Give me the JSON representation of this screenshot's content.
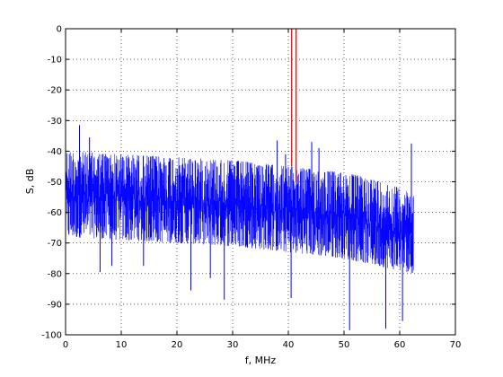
{
  "chart_data": {
    "type": "line",
    "title": "",
    "xlabel": "f, MHz",
    "ylabel": "S, dB",
    "xlim": [
      0,
      70
    ],
    "ylim": [
      -100,
      0
    ],
    "xticks": [
      0,
      10,
      20,
      30,
      40,
      50,
      60,
      70
    ],
    "yticks": [
      0,
      -10,
      -20,
      -30,
      -40,
      -50,
      -60,
      -70,
      -80,
      -90,
      -100
    ],
    "grid": true,
    "legend": "none",
    "series": [
      {
        "color": "#0000ff",
        "f_range": [
          0,
          62.5
        ],
        "envelope_top": [
          [
            0,
            -40
          ],
          [
            10,
            -41
          ],
          [
            20,
            -42
          ],
          [
            30,
            -43
          ],
          [
            40,
            -45
          ],
          [
            50,
            -47
          ],
          [
            55,
            -49
          ],
          [
            60,
            -52
          ],
          [
            62.5,
            -54
          ]
        ],
        "envelope_bottom": [
          [
            0,
            -68
          ],
          [
            10,
            -69
          ],
          [
            20,
            -70
          ],
          [
            30,
            -71
          ],
          [
            40,
            -73
          ],
          [
            50,
            -75
          ],
          [
            55,
            -77
          ],
          [
            60,
            -79
          ],
          [
            62.5,
            -80
          ]
        ],
        "spikes": [
          {
            "f": 2.5,
            "db": -31.5
          },
          {
            "f": 4.3,
            "db": -35.5
          },
          {
            "f": 6.2,
            "db": -79.5
          },
          {
            "f": 8.3,
            "db": -77.5
          },
          {
            "f": 14.0,
            "db": -77.5
          },
          {
            "f": 22.5,
            "db": -85.5
          },
          {
            "f": 26.0,
            "db": -81.5
          },
          {
            "f": 28.5,
            "db": -88.5
          },
          {
            "f": 38.0,
            "db": -36.5
          },
          {
            "f": 39.5,
            "db": -41.0
          },
          {
            "f": 40.5,
            "db": -88.0
          },
          {
            "f": 44.2,
            "db": -37.0
          },
          {
            "f": 45.5,
            "db": -39.0
          },
          {
            "f": 51.0,
            "db": -98.5
          },
          {
            "f": 57.5,
            "db": -98.0
          },
          {
            "f": 60.5,
            "db": -95.5
          },
          {
            "f": 62.1,
            "db": -37.5
          }
        ]
      },
      {
        "color": "#ff0000",
        "peaks": [
          {
            "f": 40.6,
            "db_top": 0,
            "db_bottom": -45
          },
          {
            "f": 41.4,
            "db_top": 0,
            "db_bottom": -50
          }
        ]
      }
    ]
  }
}
